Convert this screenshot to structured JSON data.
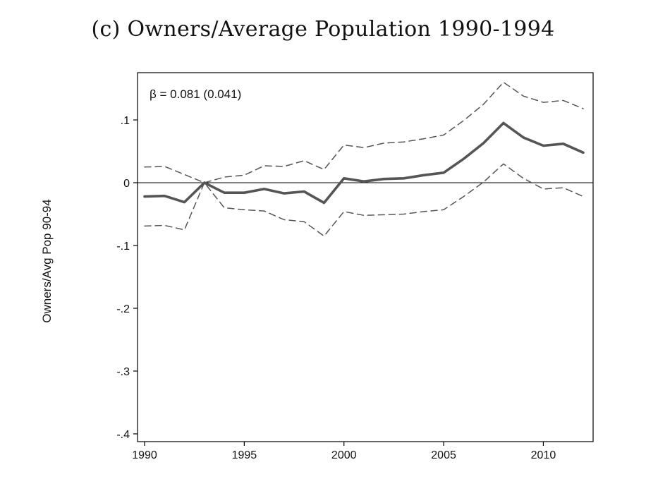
{
  "chart_data": {
    "type": "line",
    "title": "(c) Owners/Average Population 1990-1994",
    "xlabel": "",
    "ylabel": "Owners/Avg Pop 90-94",
    "annotation": "β = 0.081 (0.041)",
    "xlim": [
      1990,
      2012
    ],
    "ylim": [
      -0.4,
      0.17
    ],
    "x_ticks": [
      1990,
      1995,
      2000,
      2005,
      2010
    ],
    "x_tick_labels": [
      "1990",
      "1995",
      "2000",
      "2005",
      "2010"
    ],
    "y_ticks": [
      0.1,
      0,
      -0.1,
      -0.2,
      -0.3,
      -0.4
    ],
    "y_tick_labels": [
      ".1",
      "0",
      "-.1",
      "-.2",
      "-.3",
      "-.4"
    ],
    "reference_line": 0,
    "grid": false,
    "legend": "none",
    "x": [
      1990,
      1991,
      1992,
      1993,
      1994,
      1995,
      1996,
      1997,
      1998,
      1999,
      2000,
      2001,
      2002,
      2003,
      2004,
      2005,
      2006,
      2007,
      2008,
      2009,
      2010,
      2011,
      2012
    ],
    "series": [
      {
        "role": "estimate",
        "style": "solid",
        "color": "#555555",
        "values": [
          -0.022,
          -0.021,
          -0.031,
          0.0,
          -0.016,
          -0.016,
          -0.01,
          -0.017,
          -0.014,
          -0.032,
          0.007,
          0.002,
          0.006,
          0.007,
          0.012,
          0.016,
          0.038,
          0.063,
          0.095,
          0.072,
          0.059,
          0.062,
          0.048
        ]
      },
      {
        "role": "upper",
        "style": "dashed",
        "color": "#555555",
        "values": [
          0.025,
          0.026,
          0.013,
          0.0,
          0.009,
          0.012,
          0.027,
          0.026,
          0.035,
          0.021,
          0.06,
          0.056,
          0.063,
          0.065,
          0.07,
          0.076,
          0.099,
          0.125,
          0.16,
          0.138,
          0.128,
          0.131,
          0.118
        ]
      },
      {
        "role": "lower",
        "style": "dashed",
        "color": "#555555",
        "values": [
          -0.069,
          -0.068,
          -0.075,
          0.0,
          -0.04,
          -0.043,
          -0.045,
          -0.059,
          -0.062,
          -0.085,
          -0.046,
          -0.052,
          -0.051,
          -0.05,
          -0.046,
          -0.043,
          -0.022,
          0.001,
          0.03,
          0.007,
          -0.01,
          -0.008,
          -0.022
        ]
      }
    ]
  }
}
